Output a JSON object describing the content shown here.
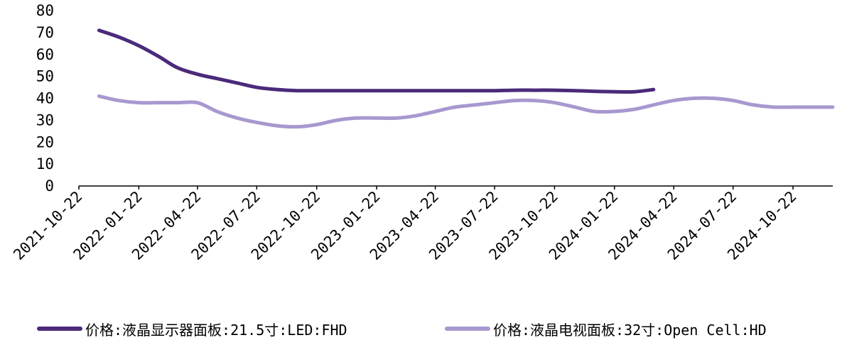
{
  "chart_data": {
    "type": "line",
    "title": "",
    "xlabel": "",
    "ylabel": "",
    "ylim": [
      0,
      80
    ],
    "yticks": [
      "0",
      "10",
      "20",
      "30",
      "40",
      "50",
      "60",
      "70",
      "80"
    ],
    "xlim": [
      "2021-10-22",
      "2024-12-22"
    ],
    "xticks": [
      "2021-10-22",
      "2022-01-22",
      "2022-04-22",
      "2022-07-22",
      "2022-10-22",
      "2023-01-22",
      "2023-04-22",
      "2023-07-22",
      "2023-10-22",
      "2024-01-22",
      "2024-04-22",
      "2024-07-22",
      "2024-10-22"
    ],
    "grid": false,
    "legend_position": "bottom",
    "series": [
      {
        "name": "价格:液晶显示器面板:21.5寸:LED:FHD",
        "color": "#4b2a7a",
        "points": [
          [
            "2021-11-22",
            71
          ],
          [
            "2021-12-22",
            68
          ],
          [
            "2022-01-22",
            64
          ],
          [
            "2022-02-22",
            59
          ],
          [
            "2022-03-22",
            54
          ],
          [
            "2022-04-22",
            51
          ],
          [
            "2022-05-22",
            49
          ],
          [
            "2022-06-22",
            47
          ],
          [
            "2022-07-22",
            45
          ],
          [
            "2022-08-22",
            44
          ],
          [
            "2022-09-22",
            43.5
          ],
          [
            "2022-10-22",
            43.5
          ],
          [
            "2022-11-22",
            43.5
          ],
          [
            "2022-12-22",
            43.5
          ],
          [
            "2023-01-22",
            43.5
          ],
          [
            "2023-02-22",
            43.5
          ],
          [
            "2023-03-22",
            43.5
          ],
          [
            "2023-04-22",
            43.5
          ],
          [
            "2023-05-22",
            43.5
          ],
          [
            "2023-06-22",
            43.5
          ],
          [
            "2023-07-22",
            43.5
          ],
          [
            "2023-08-22",
            43.7
          ],
          [
            "2023-09-22",
            43.7
          ],
          [
            "2023-10-22",
            43.7
          ],
          [
            "2023-11-22",
            43.5
          ],
          [
            "2023-12-22",
            43.2
          ],
          [
            "2024-01-22",
            43
          ],
          [
            "2024-02-22",
            43
          ],
          [
            "2024-03-22",
            44
          ]
        ]
      },
      {
        "name": "价格:液晶电视面板:32寸:Open Cell:HD",
        "color": "#a898cf",
        "points": [
          [
            "2021-11-22",
            41
          ],
          [
            "2021-12-22",
            39
          ],
          [
            "2022-01-22",
            38
          ],
          [
            "2022-02-22",
            38
          ],
          [
            "2022-03-22",
            38
          ],
          [
            "2022-04-22",
            38
          ],
          [
            "2022-05-22",
            34
          ],
          [
            "2022-06-22",
            31
          ],
          [
            "2022-07-22",
            29
          ],
          [
            "2022-08-22",
            27.5
          ],
          [
            "2022-09-22",
            27
          ],
          [
            "2022-10-22",
            28
          ],
          [
            "2022-11-22",
            30
          ],
          [
            "2022-12-22",
            31
          ],
          [
            "2023-01-22",
            31
          ],
          [
            "2023-02-22",
            31
          ],
          [
            "2023-03-22",
            32
          ],
          [
            "2023-04-22",
            34
          ],
          [
            "2023-05-22",
            36
          ],
          [
            "2023-06-22",
            37
          ],
          [
            "2023-07-22",
            38
          ],
          [
            "2023-08-22",
            39
          ],
          [
            "2023-09-22",
            39
          ],
          [
            "2023-10-22",
            38
          ],
          [
            "2023-11-22",
            36
          ],
          [
            "2023-12-22",
            34
          ],
          [
            "2024-01-22",
            34
          ],
          [
            "2024-02-22",
            35
          ],
          [
            "2024-03-22",
            37
          ],
          [
            "2024-04-22",
            39
          ],
          [
            "2024-05-22",
            40
          ],
          [
            "2024-06-22",
            40
          ],
          [
            "2024-07-22",
            39
          ],
          [
            "2024-08-22",
            37
          ],
          [
            "2024-09-22",
            36
          ],
          [
            "2024-10-22",
            36
          ],
          [
            "2024-11-22",
            36
          ],
          [
            "2024-12-22",
            36
          ]
        ]
      }
    ]
  }
}
